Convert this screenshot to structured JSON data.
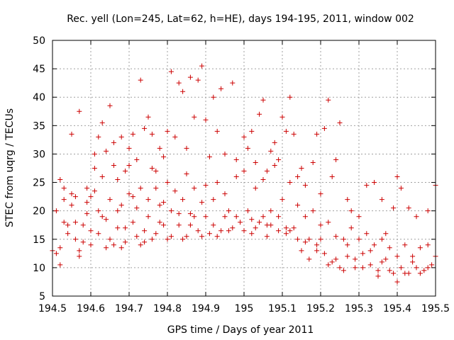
{
  "chart_data": {
    "type": "scatter",
    "title": "Rec. yell (Lon=245, Lat=62, h=HE), days 194-195, 2011, window 002",
    "xlabel": "GPS time / Days of year 2011",
    "ylabel": "STEC from uqrg / TECUs",
    "xlim": [
      194.5,
      195.5
    ],
    "ylim": [
      5,
      50
    ],
    "xticks": [
      "194.5",
      "194.6",
      "194.7",
      "194.8",
      "194.9",
      "195",
      "195.1",
      "195.2",
      "195.3",
      "195.4",
      "195.5"
    ],
    "yticks": [
      "5",
      "10",
      "15",
      "20",
      "25",
      "30",
      "35",
      "40",
      "45",
      "50"
    ],
    "grid": true,
    "marker": "plus",
    "color": "#cc0000",
    "series": [
      {
        "points": [
          [
            194.5,
            13
          ],
          [
            194.51,
            12.5
          ],
          [
            194.52,
            10.5
          ],
          [
            194.52,
            13.5
          ],
          [
            194.53,
            18
          ],
          [
            194.53,
            24
          ],
          [
            194.54,
            17.5
          ],
          [
            194.55,
            21
          ],
          [
            194.55,
            23
          ],
          [
            194.56,
            15
          ],
          [
            194.56,
            22.5
          ],
          [
            194.57,
            13
          ],
          [
            194.57,
            12
          ],
          [
            194.58,
            17.5
          ],
          [
            194.59,
            21.5
          ],
          [
            194.6,
            14
          ],
          [
            194.6,
            16.5
          ],
          [
            194.61,
            23.5
          ],
          [
            194.61,
            27.5
          ],
          [
            194.62,
            20
          ],
          [
            194.63,
            26
          ],
          [
            194.64,
            13.5
          ],
          [
            194.64,
            18.5
          ],
          [
            194.65,
            22
          ],
          [
            194.66,
            14
          ],
          [
            194.66,
            28
          ],
          [
            194.67,
            20
          ],
          [
            194.67,
            25.5
          ],
          [
            194.68,
            13.5
          ],
          [
            194.69,
            17
          ],
          [
            194.7,
            23
          ],
          [
            194.7,
            28
          ],
          [
            194.71,
            22.5
          ],
          [
            194.72,
            15.5
          ],
          [
            194.73,
            14
          ],
          [
            194.73,
            24
          ],
          [
            194.74,
            16.5
          ],
          [
            194.75,
            22
          ],
          [
            194.76,
            27.5
          ],
          [
            194.76,
            15
          ],
          [
            194.77,
            24
          ],
          [
            194.78,
            18
          ],
          [
            194.79,
            21.5
          ],
          [
            194.8,
            15
          ],
          [
            194.8,
            25
          ],
          [
            194.81,
            20
          ],
          [
            194.82,
            23.5
          ],
          [
            194.83,
            17.5
          ],
          [
            194.84,
            22
          ],
          [
            194.85,
            15.5
          ],
          [
            194.85,
            26.5
          ],
          [
            194.86,
            19.5
          ],
          [
            194.87,
            24
          ],
          [
            194.88,
            16.5
          ],
          [
            194.89,
            21.5
          ],
          [
            194.9,
            24.5
          ],
          [
            194.91,
            16
          ],
          [
            194.92,
            22
          ],
          [
            194.93,
            25
          ],
          [
            194.94,
            16.5
          ],
          [
            194.95,
            23
          ],
          [
            194.96,
            20
          ],
          [
            194.97,
            17
          ],
          [
            194.98,
            26
          ],
          [
            194.99,
            18
          ],
          [
            195.0,
            27
          ],
          [
            195.01,
            20
          ],
          [
            195.02,
            16
          ],
          [
            195.03,
            24
          ],
          [
            195.04,
            18
          ],
          [
            195.05,
            25.5
          ],
          [
            195.06,
            15.5
          ],
          [
            195.07,
            20
          ],
          [
            195.08,
            28
          ],
          [
            195.09,
            19
          ],
          [
            195.1,
            22
          ],
          [
            195.11,
            16
          ],
          [
            195.12,
            25
          ],
          [
            195.13,
            17
          ],
          [
            195.14,
            21
          ],
          [
            195.15,
            13
          ],
          [
            195.16,
            19
          ],
          [
            195.17,
            15
          ],
          [
            195.18,
            20
          ],
          [
            195.19,
            14
          ],
          [
            195.2,
            17.5
          ],
          [
            195.21,
            12.5
          ],
          [
            195.22,
            18
          ],
          [
            195.23,
            11
          ],
          [
            195.24,
            15.5
          ],
          [
            195.25,
            10
          ],
          [
            195.26,
            15
          ],
          [
            195.27,
            12
          ],
          [
            195.28,
            17
          ],
          [
            195.29,
            10
          ],
          [
            195.3,
            15
          ],
          [
            195.31,
            12.5
          ],
          [
            195.32,
            16
          ],
          [
            195.33,
            10.5
          ],
          [
            195.34,
            14
          ],
          [
            195.35,
            9.5
          ],
          [
            195.36,
            15
          ],
          [
            195.37,
            11.5
          ],
          [
            195.38,
            13.5
          ],
          [
            195.39,
            9
          ],
          [
            195.4,
            12
          ],
          [
            195.41,
            10
          ],
          [
            195.42,
            14
          ],
          [
            195.43,
            9
          ],
          [
            195.44,
            12
          ],
          [
            195.45,
            10
          ],
          [
            195.46,
            13.5
          ],
          [
            195.47,
            9.5
          ],
          [
            195.48,
            14
          ],
          [
            195.49,
            10.5
          ],
          [
            195.5,
            12
          ],
          [
            194.52,
            25.5
          ],
          [
            194.55,
            33.5
          ],
          [
            194.57,
            37.5
          ],
          [
            194.59,
            24
          ],
          [
            194.61,
            30
          ],
          [
            194.62,
            33
          ],
          [
            194.63,
            35.5
          ],
          [
            194.64,
            30.5
          ],
          [
            194.65,
            38.5
          ],
          [
            194.66,
            32
          ],
          [
            194.68,
            33
          ],
          [
            194.69,
            27
          ],
          [
            194.7,
            31
          ],
          [
            194.71,
            33.5
          ],
          [
            194.72,
            29
          ],
          [
            194.73,
            43
          ],
          [
            194.74,
            34.5
          ],
          [
            194.75,
            36.5
          ],
          [
            194.76,
            33.5
          ],
          [
            194.77,
            27
          ],
          [
            194.78,
            31
          ],
          [
            194.79,
            29.5
          ],
          [
            194.8,
            34
          ],
          [
            194.81,
            44.5
          ],
          [
            194.82,
            33
          ],
          [
            194.83,
            42.5
          ],
          [
            194.84,
            41
          ],
          [
            194.85,
            31
          ],
          [
            194.86,
            43.5
          ],
          [
            194.87,
            36.5
          ],
          [
            194.88,
            43
          ],
          [
            194.89,
            45.5
          ],
          [
            194.9,
            36
          ],
          [
            194.91,
            29.5
          ],
          [
            194.92,
            40
          ],
          [
            194.93,
            34
          ],
          [
            194.94,
            41.5
          ],
          [
            194.95,
            30
          ],
          [
            194.97,
            42.5
          ],
          [
            194.98,
            29
          ],
          [
            195.0,
            33
          ],
          [
            195.01,
            31
          ],
          [
            195.02,
            34
          ],
          [
            195.03,
            28.5
          ],
          [
            195.04,
            37
          ],
          [
            195.05,
            39.5
          ],
          [
            195.06,
            27
          ],
          [
            195.07,
            30.5
          ],
          [
            195.08,
            32
          ],
          [
            195.09,
            29
          ],
          [
            195.1,
            36.5
          ],
          [
            195.11,
            34
          ],
          [
            195.12,
            40
          ],
          [
            195.13,
            33.5
          ],
          [
            195.14,
            26
          ],
          [
            195.15,
            27.5
          ],
          [
            195.16,
            24.5
          ],
          [
            195.18,
            28.5
          ],
          [
            195.19,
            33.5
          ],
          [
            195.2,
            23
          ],
          [
            195.21,
            34.5
          ],
          [
            195.22,
            39.5
          ],
          [
            195.23,
            26
          ],
          [
            195.24,
            29
          ],
          [
            195.25,
            35.5
          ],
          [
            195.27,
            22
          ],
          [
            195.28,
            20
          ],
          [
            195.3,
            19
          ],
          [
            195.32,
            24.5
          ],
          [
            195.34,
            25
          ],
          [
            195.36,
            22
          ],
          [
            195.37,
            16
          ],
          [
            195.39,
            20.5
          ],
          [
            195.4,
            26
          ],
          [
            195.41,
            24
          ],
          [
            195.43,
            20.5
          ],
          [
            195.45,
            19
          ],
          [
            195.48,
            20
          ],
          [
            195.5,
            24.5
          ],
          [
            194.51,
            20
          ],
          [
            194.53,
            22
          ],
          [
            194.54,
            16
          ],
          [
            194.56,
            18
          ],
          [
            194.58,
            14.5
          ],
          [
            194.59,
            19.5
          ],
          [
            194.6,
            22.5
          ],
          [
            194.62,
            16
          ],
          [
            194.63,
            19
          ],
          [
            194.65,
            15
          ],
          [
            194.67,
            17
          ],
          [
            194.68,
            21
          ],
          [
            194.69,
            14.5
          ],
          [
            194.71,
            18
          ],
          [
            194.72,
            20.5
          ],
          [
            194.74,
            14.5
          ],
          [
            194.75,
            19
          ],
          [
            194.77,
            16
          ],
          [
            194.78,
            21
          ],
          [
            194.79,
            17.5
          ],
          [
            194.81,
            15.5
          ],
          [
            194.83,
            19.5
          ],
          [
            194.84,
            15
          ],
          [
            194.86,
            17.5
          ],
          [
            194.87,
            19
          ],
          [
            194.89,
            15.5
          ],
          [
            194.9,
            19
          ],
          [
            194.92,
            17.5
          ],
          [
            194.93,
            15.5
          ],
          [
            194.95,
            19
          ],
          [
            194.96,
            16.5
          ],
          [
            194.98,
            19
          ],
          [
            195.0,
            16.5
          ],
          [
            195.02,
            18.5
          ],
          [
            195.03,
            17
          ],
          [
            195.05,
            19
          ],
          [
            195.06,
            17.5
          ],
          [
            195.07,
            17.5
          ],
          [
            195.09,
            16.5
          ],
          [
            195.11,
            17
          ],
          [
            195.12,
            16.5
          ],
          [
            195.14,
            15
          ],
          [
            195.16,
            14.5
          ],
          [
            195.17,
            11.5
          ],
          [
            195.19,
            13
          ],
          [
            195.2,
            15
          ],
          [
            195.22,
            10.5
          ],
          [
            195.24,
            11.5
          ],
          [
            195.26,
            9.5
          ],
          [
            195.27,
            14
          ],
          [
            195.29,
            11.5
          ],
          [
            195.31,
            10
          ],
          [
            195.33,
            13
          ],
          [
            195.35,
            8.5
          ],
          [
            195.36,
            11
          ],
          [
            195.38,
            9.5
          ],
          [
            195.4,
            7.5
          ],
          [
            195.42,
            9
          ],
          [
            195.44,
            11
          ],
          [
            195.46,
            9
          ],
          [
            195.48,
            10
          ]
        ]
      }
    ]
  }
}
